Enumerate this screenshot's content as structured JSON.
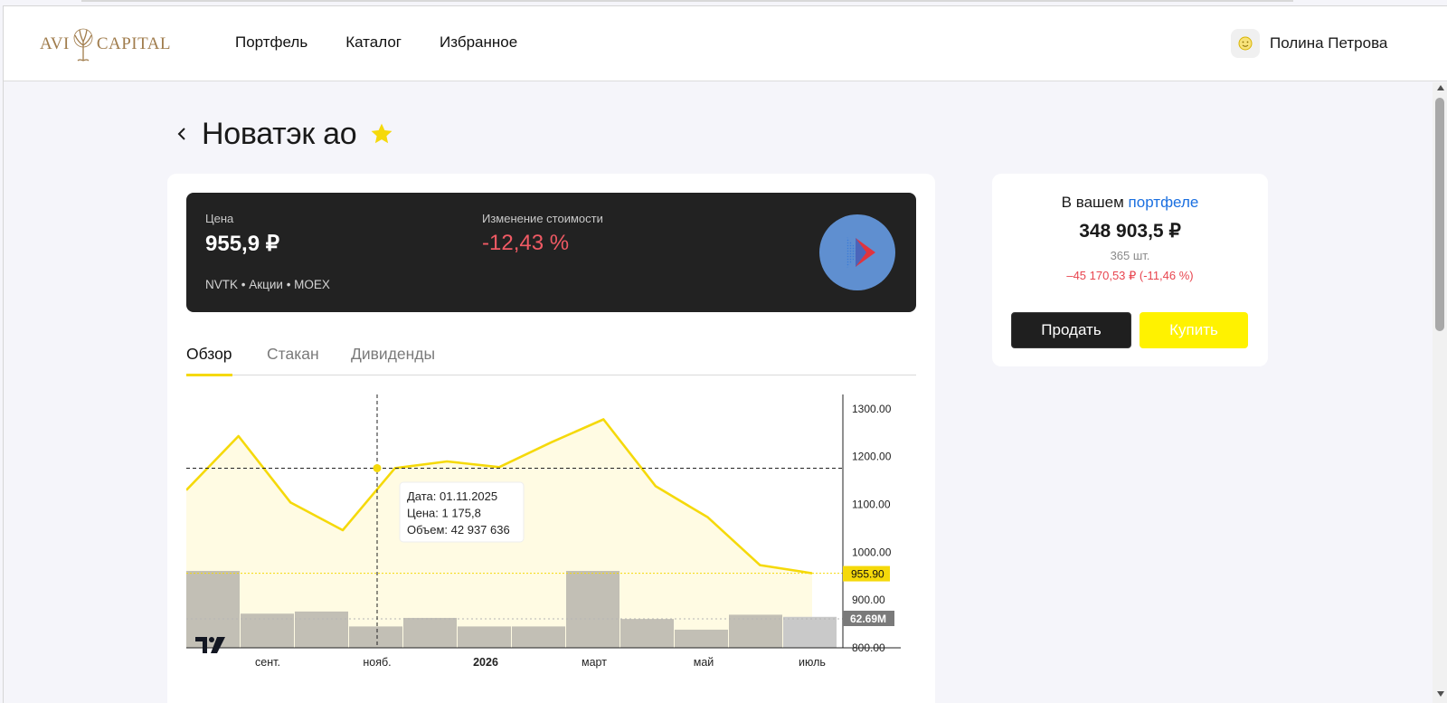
{
  "header": {
    "logo": {
      "part1": "AVI",
      "part2": "CAPITAL"
    },
    "nav": [
      "Портфель",
      "Каталог",
      "Избранное"
    ],
    "user_name": "Полина Петрова"
  },
  "page": {
    "title": "Новатэк ао"
  },
  "instrument": {
    "price_label": "Цена",
    "price": "955,9 ₽",
    "change_label": "Изменение стоимости",
    "change": "-12,43 %",
    "meta": "NVTK • Акции • MOEX"
  },
  "tabs": [
    "Обзор",
    "Стакан",
    "Дивиденды"
  ],
  "portfolio": {
    "title_prefix": "В вашем",
    "title_link": "портфеле",
    "value": "348 903,5 ₽",
    "quantity": "365 шт.",
    "change": "–45 170,53 ₽ (-11,46 %)",
    "sell": "Продать",
    "buy": "Купить"
  },
  "colors": {
    "accent_yellow": "#f5d90a",
    "button_yellow": "#fff200",
    "negative": "#e8454f",
    "link": "#1a6fe0",
    "dark_card": "#222222"
  },
  "chart_data": {
    "type": "line",
    "x_ticks": [
      "сент.",
      "нояб.",
      "2026",
      "март",
      "май",
      "июль"
    ],
    "y_ticks": [
      "1300.00",
      "1200.00",
      "1100.00",
      "1000.00",
      "900.00",
      "800.00"
    ],
    "ylim": [
      800,
      1330
    ],
    "series": [
      {
        "values": [
          1130,
          1243,
          1104,
          1046,
          1176,
          1190,
          1178,
          1230,
          1278,
          1138,
          1073,
          973,
          956
        ],
        "type": "line"
      }
    ],
    "volume_bars": [
      72,
      32,
      34,
      20,
      28,
      20,
      20,
      72,
      27,
      17,
      31,
      29
    ],
    "last_price_label": "955.90",
    "last_volume_label": "62.69M",
    "crosshair": {
      "price": "1175.8"
    },
    "tooltip": [
      "Дата: 01.11.2025",
      "Цена: 1 175,8",
      "Объем: 42 937 636"
    ]
  }
}
